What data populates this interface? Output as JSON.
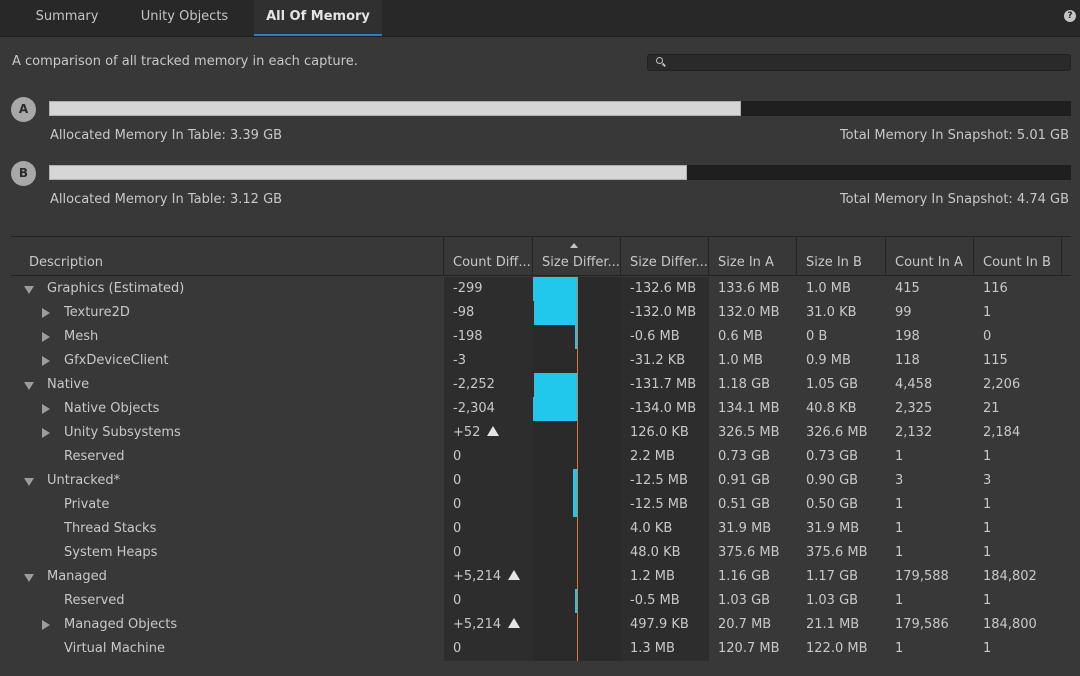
{
  "tabs": [
    {
      "label": "Summary"
    },
    {
      "label": "Unity Objects"
    },
    {
      "label": "All Of Memory"
    }
  ],
  "header": {
    "description": "A comparison of all tracked memory in each capture.",
    "help_icon": "help-icon"
  },
  "captures": [
    {
      "badge": "A",
      "allocated": "Allocated Memory In Table: 3.39 GB",
      "total": "Total Memory In Snapshot: 5.01 GB",
      "allocated_fraction": 0.677
    },
    {
      "badge": "B",
      "allocated": "Allocated Memory In Table: 3.12 GB",
      "total": "Total Memory In Snapshot: 4.74 GB",
      "allocated_fraction": 0.624
    }
  ],
  "table": {
    "headers": [
      "Description",
      "Count Diff...",
      "Size Differ...",
      "Size Differ...",
      "Size In A",
      "Size In B",
      "Count In A",
      "Count In B"
    ],
    "rows": [
      {
        "name": "Graphics (Estimated)",
        "toggle": "expanded",
        "count_diff": "-299",
        "size_diff": "-132.6 MB",
        "size_a": "133.6 MB",
        "size_b": "1.0 MB",
        "count_a": "415",
        "count_b": "116"
      },
      {
        "name": "Texture2D",
        "toggle": "collapsed",
        "count_diff": "-98",
        "size_diff": "-132.0 MB",
        "size_a": "132.0 MB",
        "size_b": "31.0 KB",
        "count_a": "99",
        "count_b": "1"
      },
      {
        "name": "Mesh",
        "toggle": "collapsed",
        "count_diff": "-198",
        "size_diff": "-0.6 MB",
        "size_a": "0.6 MB",
        "size_b": "0 B",
        "count_a": "198",
        "count_b": "0"
      },
      {
        "name": "GfxDeviceClient",
        "toggle": "collapsed",
        "count_diff": "-3",
        "size_diff": "-31.2 KB",
        "size_a": "1.0 MB",
        "size_b": "0.9 MB",
        "count_a": "118",
        "count_b": "115"
      },
      {
        "name": "Native",
        "toggle": "expanded",
        "count_diff": "-2,252",
        "size_diff": "-131.7 MB",
        "size_a": "1.18 GB",
        "size_b": "1.05 GB",
        "count_a": "4,458",
        "count_b": "2,206"
      },
      {
        "name": "Native Objects",
        "toggle": "collapsed",
        "count_diff": "-2,304",
        "size_diff": "-134.0 MB",
        "size_a": "134.1 MB",
        "size_b": "40.8 KB",
        "count_a": "2,325",
        "count_b": "21"
      },
      {
        "name": "Unity Subsystems",
        "toggle": "collapsed",
        "count_diff": "+52",
        "increase": true,
        "size_diff": "126.0 KB",
        "size_a": "326.5 MB",
        "size_b": "326.6 MB",
        "count_a": "2,132",
        "count_b": "2,184"
      },
      {
        "name": "Reserved",
        "toggle": "none",
        "count_diff": "0",
        "size_diff": "2.2 MB",
        "size_a": "0.73 GB",
        "size_b": "0.73 GB",
        "count_a": "1",
        "count_b": "1"
      },
      {
        "name": "Untracked*",
        "toggle": "expanded",
        "count_diff": "0",
        "size_diff": "-12.5 MB",
        "size_a": "0.91 GB",
        "size_b": "0.90 GB",
        "count_a": "3",
        "count_b": "3"
      },
      {
        "name": "Private",
        "toggle": "none",
        "count_diff": "0",
        "size_diff": "-12.5 MB",
        "size_a": "0.51 GB",
        "size_b": "0.50 GB",
        "count_a": "1",
        "count_b": "1"
      },
      {
        "name": "Thread Stacks",
        "toggle": "none",
        "count_diff": "0",
        "size_diff": "4.0 KB",
        "size_a": "31.9 MB",
        "size_b": "31.9 MB",
        "count_a": "1",
        "count_b": "1"
      },
      {
        "name": "System Heaps",
        "toggle": "none",
        "count_diff": "0",
        "size_diff": "48.0 KB",
        "size_a": "375.6 MB",
        "size_b": "375.6 MB",
        "count_a": "1",
        "count_b": "1"
      },
      {
        "name": "Managed",
        "toggle": "expanded",
        "count_diff": "+5,214",
        "increase": true,
        "size_diff": "1.2 MB",
        "size_a": "1.16 GB",
        "size_b": "1.17 GB",
        "count_a": "179,588",
        "count_b": "184,802"
      },
      {
        "name": "Reserved",
        "toggle": "none",
        "count_diff": "0",
        "size_diff": "-0.5 MB",
        "size_a": "1.03 GB",
        "size_b": "1.03 GB",
        "count_a": "1",
        "count_b": "1"
      },
      {
        "name": "Managed Objects",
        "toggle": "collapsed",
        "count_diff": "+5,214",
        "increase": true,
        "size_diff": "497.9 KB",
        "size_a": "20.7 MB",
        "size_b": "21.1 MB",
        "count_a": "179,586",
        "count_b": "184,800"
      },
      {
        "name": "Virtual Machine",
        "toggle": "none",
        "count_diff": "0",
        "size_diff": "1.3 MB",
        "size_a": "120.7 MB",
        "size_b": "122.0 MB",
        "count_a": "1",
        "count_b": "1"
      }
    ]
  },
  "colors": {
    "diff_bar": "#22c8ec",
    "zero_line": "#e2763a",
    "active_tab": "#3a79bb"
  }
}
